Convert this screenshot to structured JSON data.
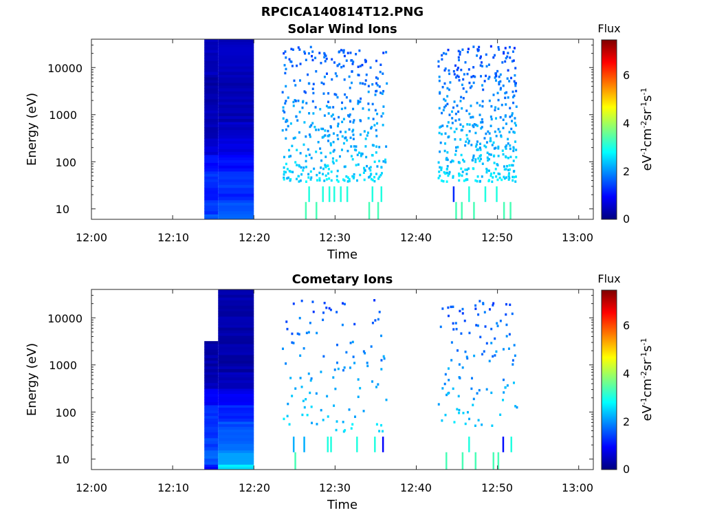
{
  "figure": {
    "file_title": "RPCICA140814T12.PNG",
    "colorbar_label": "Flux",
    "colorbar_unit_plain": "eV-1cm-2sr-1s-1",
    "colorscale": [
      "#00007f",
      "#0000ff",
      "#007fff",
      "#00ffff",
      "#7fff7f",
      "#ffff00",
      "#ff7f00",
      "#ff0000",
      "#7f0000"
    ]
  },
  "chart_data": [
    {
      "type": "heatmap",
      "title": "Solar Wind Ions",
      "xlabel": "Time",
      "ylabel": "Energy (eV)",
      "x_ticks": [
        "12:00",
        "12:10",
        "12:20",
        "12:30",
        "12:40",
        "12:50",
        "13:00"
      ],
      "y_ticks": [
        "10",
        "100",
        "1000",
        "10000"
      ],
      "xlim": [
        "12:00",
        "13:01"
      ],
      "ylim_eV": [
        6,
        40000
      ],
      "y_scale": "log",
      "colorbar": {
        "label": "Flux",
        "ticks": [
          "0",
          "2",
          "4",
          "6"
        ],
        "range": [
          0,
          7.4
        ]
      },
      "blocks": [
        {
          "t0": 13.9,
          "t1": 15.6,
          "rows": [
            [
              5,
              1.6
            ],
            [
              12,
              1.3
            ],
            [
              20,
              1.0
            ],
            [
              40,
              1.3
            ],
            [
              100,
              1.0
            ],
            [
              200,
              0.6
            ],
            [
              500,
              0.4
            ],
            [
              1000,
              0.4
            ],
            [
              2000,
              0.3
            ],
            [
              5000,
              0.3
            ],
            [
              10000,
              0.4
            ],
            [
              25000,
              0.5
            ]
          ]
        },
        {
          "t0": 15.6,
          "t1": 20.0,
          "rows": [
            [
              5,
              1.7
            ],
            [
              12,
              1.5
            ],
            [
              20,
              1.2
            ],
            [
              40,
              1.3
            ],
            [
              100,
              1.0
            ],
            [
              200,
              0.7
            ],
            [
              500,
              0.5
            ],
            [
              1000,
              0.4
            ],
            [
              2000,
              0.4
            ],
            [
              5000,
              0.4
            ],
            [
              10000,
              0.4
            ],
            [
              25000,
              0.5
            ]
          ]
        }
      ],
      "scatter_regions": [
        {
          "t0": 23.4,
          "t1": 36.3,
          "e_lo": 40,
          "e_hi": 30000
        },
        {
          "t0": 42.6,
          "t1": 52.3,
          "e_lo": 40,
          "e_hi": 30000
        }
      ],
      "low_energy_bars": [
        {
          "t": 26.3,
          "e": 9,
          "v": 3.3
        },
        {
          "t": 26.7,
          "e": 20,
          "v": 3.0
        },
        {
          "t": 27.6,
          "e": 9,
          "v": 3.3
        },
        {
          "t": 28.4,
          "e": 20,
          "v": 3.0
        },
        {
          "t": 29.2,
          "e": 20,
          "v": 3.0
        },
        {
          "t": 29.8,
          "e": 20,
          "v": 3.0
        },
        {
          "t": 30.6,
          "e": 20,
          "v": 3.0
        },
        {
          "t": 31.4,
          "e": 20,
          "v": 3.0
        },
        {
          "t": 34.1,
          "e": 9,
          "v": 3.3
        },
        {
          "t": 34.5,
          "e": 20,
          "v": 3.0
        },
        {
          "t": 35.2,
          "e": 9,
          "v": 3.3
        },
        {
          "t": 35.6,
          "e": 20,
          "v": 3.0
        },
        {
          "t": 44.5,
          "e": 20,
          "v": 1.2
        },
        {
          "t": 44.8,
          "e": 9,
          "v": 3.3
        },
        {
          "t": 45.5,
          "e": 9,
          "v": 3.3
        },
        {
          "t": 46.4,
          "e": 20,
          "v": 3.0
        },
        {
          "t": 47.0,
          "e": 9,
          "v": 3.3
        },
        {
          "t": 48.4,
          "e": 20,
          "v": 3.0
        },
        {
          "t": 49.8,
          "e": 20,
          "v": 3.0
        },
        {
          "t": 50.7,
          "e": 9,
          "v": 3.3
        },
        {
          "t": 51.5,
          "e": 9,
          "v": 3.3
        }
      ]
    },
    {
      "type": "heatmap",
      "title": "Cometary Ions",
      "xlabel": "Time",
      "ylabel": "Energy (eV)",
      "x_ticks": [
        "12:00",
        "12:10",
        "12:20",
        "12:30",
        "12:40",
        "12:50",
        "13:00"
      ],
      "y_ticks": [
        "10",
        "100",
        "1000",
        "10000"
      ],
      "xlim": [
        "12:00",
        "13:01"
      ],
      "ylim_eV": [
        6,
        40000
      ],
      "y_scale": "log",
      "colorbar": {
        "label": "Flux",
        "ticks": [
          "0",
          "2",
          "4",
          "6"
        ],
        "range": [
          0,
          7.4
        ]
      },
      "blocks": [
        {
          "t0": 13.9,
          "t1": 15.6,
          "rows": [
            [
              5,
              1.0
            ],
            [
              12,
              1.6
            ],
            [
              20,
              1.4
            ],
            [
              40,
              1.3
            ],
            [
              100,
              1.3
            ],
            [
              200,
              0.9
            ],
            [
              500,
              0.4
            ],
            [
              1000,
              0.3
            ],
            [
              2000,
              0.3
            ]
          ]
        },
        {
          "t0": 15.6,
          "t1": 20.0,
          "rows": [
            [
              5,
              2.6
            ],
            [
              12,
              2.0
            ],
            [
              20,
              1.7
            ],
            [
              40,
              1.5
            ],
            [
              100,
              1.2
            ],
            [
              200,
              0.8
            ],
            [
              500,
              0.4
            ],
            [
              1000,
              0.3
            ],
            [
              2000,
              0.3
            ],
            [
              5000,
              0.3
            ],
            [
              10000,
              0.3
            ],
            [
              25000,
              0.3
            ]
          ]
        }
      ],
      "scatter_regions": [
        {
          "t0": 23.4,
          "t1": 36.3,
          "e_lo": 40,
          "e_hi": 25000
        },
        {
          "t0": 42.6,
          "t1": 52.3,
          "e_lo": 40,
          "e_hi": 25000
        }
      ],
      "low_energy_bars": [
        {
          "t": 25.0,
          "e": 9,
          "v": 3.3
        },
        {
          "t": 24.8,
          "e": 20,
          "v": 2.2
        },
        {
          "t": 26.1,
          "e": 20,
          "v": 2.2
        },
        {
          "t": 29.0,
          "e": 20,
          "v": 3.0
        },
        {
          "t": 29.4,
          "e": 20,
          "v": 3.0
        },
        {
          "t": 32.6,
          "e": 20,
          "v": 3.0
        },
        {
          "t": 34.8,
          "e": 20,
          "v": 3.0
        },
        {
          "t": 35.8,
          "e": 20,
          "v": 0.9
        },
        {
          "t": 43.6,
          "e": 9,
          "v": 3.3
        },
        {
          "t": 45.6,
          "e": 9,
          "v": 3.3
        },
        {
          "t": 46.4,
          "e": 20,
          "v": 3.0
        },
        {
          "t": 47.2,
          "e": 9,
          "v": 3.3
        },
        {
          "t": 49.4,
          "e": 9,
          "v": 3.3
        },
        {
          "t": 50.0,
          "e": 9,
          "v": 3.3
        },
        {
          "t": 50.6,
          "e": 20,
          "v": 1.0
        },
        {
          "t": 51.6,
          "e": 20,
          "v": 3.0
        }
      ]
    }
  ]
}
